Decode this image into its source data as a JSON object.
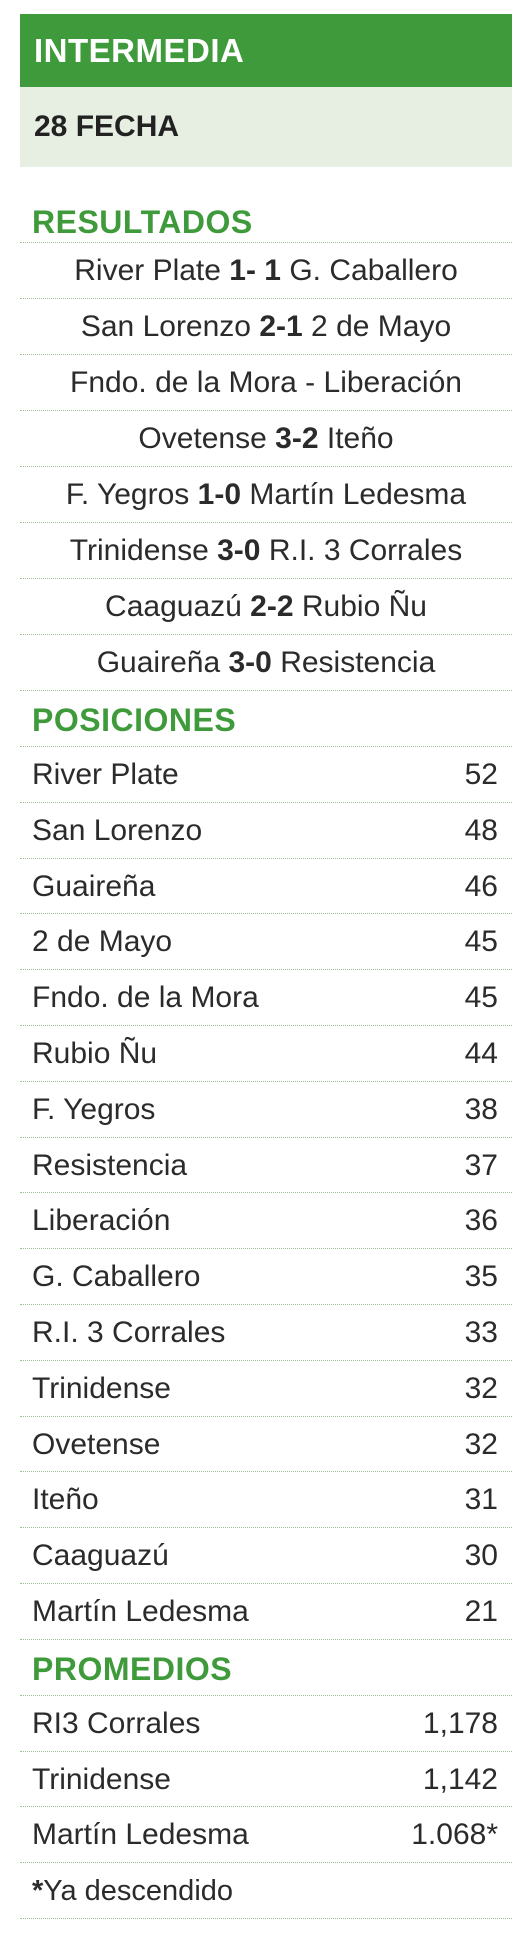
{
  "header": {
    "title": "INTERMEDIA",
    "subtitle": "28 FECHA"
  },
  "results": {
    "heading": "RESULTADOS",
    "matches": [
      {
        "home": "River Plate",
        "score": "1- 1",
        "away": "G. Caballero"
      },
      {
        "home": "San Lorenzo",
        "score": "2-1",
        "away": "2 de Mayo"
      },
      {
        "home": "Fndo. de la Mora",
        "score": "-",
        "away": "Liberación"
      },
      {
        "home": "Ovetense",
        "score": "3-2",
        "away": "Iteño"
      },
      {
        "home": "F. Yegros",
        "score": "1-0",
        "away": "Martín Ledesma"
      },
      {
        "home": "Trinidense",
        "score": "3-0",
        "away": "R.I. 3 Corrales"
      },
      {
        "home": "Caaguazú",
        "score": "2-2",
        "away": "Rubio Ñu"
      },
      {
        "home": "Guaireña",
        "score": "3-0",
        "away": "Resistencia"
      }
    ]
  },
  "standings": {
    "heading": "POSICIONES",
    "rows": [
      {
        "team": "River Plate",
        "points": "52"
      },
      {
        "team": "San Lorenzo",
        "points": "48"
      },
      {
        "team": "Guaireña",
        "points": "46"
      },
      {
        "team": "2 de Mayo",
        "points": "45"
      },
      {
        "team": "Fndo. de la Mora",
        "points": "45"
      },
      {
        "team": "Rubio Ñu",
        "points": "44"
      },
      {
        "team": "F. Yegros",
        "points": "38"
      },
      {
        "team": "Resistencia",
        "points": "37"
      },
      {
        "team": "Liberación",
        "points": "36"
      },
      {
        "team": "G. Caballero",
        "points": "35"
      },
      {
        "team": "R.I. 3 Corrales",
        "points": "33"
      },
      {
        "team": "Trinidense",
        "points": "32"
      },
      {
        "team": "Ovetense",
        "points": "32"
      },
      {
        "team": "Iteño",
        "points": "31"
      },
      {
        "team": "Caaguazú",
        "points": "30"
      },
      {
        "team": "Martín Ledesma",
        "points": "21"
      }
    ]
  },
  "averages": {
    "heading": "PROMEDIOS",
    "rows": [
      {
        "team": "RI3 Corrales",
        "value": "1,178"
      },
      {
        "team": "Trinidense",
        "value": "1,142"
      },
      {
        "team": "Martín Ledesma",
        "value": "1.068*"
      }
    ],
    "footnote_mark": "*",
    "footnote_text": "Ya descendido"
  }
}
